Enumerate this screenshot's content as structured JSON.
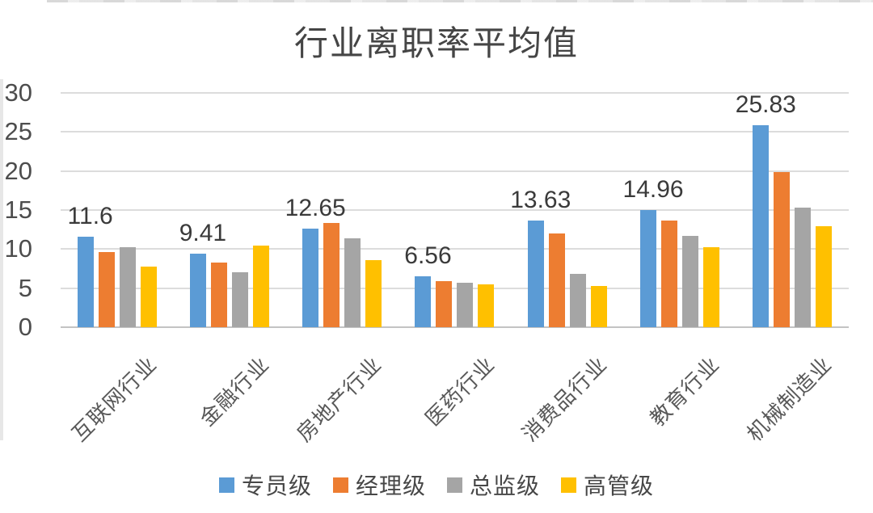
{
  "title": "行业离职率平均值",
  "chart_data": {
    "type": "bar",
    "title": "行业离职率平均值",
    "categories": [
      "互联网行业",
      "金融行业",
      "房地产行业",
      "医药行业",
      "消费品行业",
      "教育行业",
      "机械制造业"
    ],
    "series": [
      {
        "name": "专员级",
        "color": "#5B9BD5",
        "values": [
          11.6,
          9.41,
          12.65,
          6.56,
          13.63,
          14.96,
          25.83
        ],
        "data_labels": [
          "11.6",
          "9.41",
          "12.65",
          "6.56",
          "13.63",
          "14.96",
          "25.83"
        ]
      },
      {
        "name": "经理级",
        "color": "#ED7D31",
        "values": [
          9.6,
          8.3,
          13.3,
          5.9,
          12,
          13.7,
          19.9
        ]
      },
      {
        "name": "总监级",
        "color": "#A5A5A5",
        "values": [
          10.2,
          7.05,
          11.35,
          5.65,
          6.8,
          11.7,
          15.35
        ]
      },
      {
        "name": "高管级",
        "color": "#FFC000",
        "values": [
          7.8,
          10.5,
          8.55,
          5.5,
          5.3,
          10.25,
          12.9
        ]
      }
    ],
    "y_axis": {
      "min": 0,
      "max": 30,
      "step": 5,
      "tick_labels": [
        "0",
        "5",
        "10",
        "15",
        "20",
        "25",
        "30"
      ]
    },
    "grid": true,
    "legend_position": "bottom",
    "data_labels_shown_for": "专员级"
  }
}
